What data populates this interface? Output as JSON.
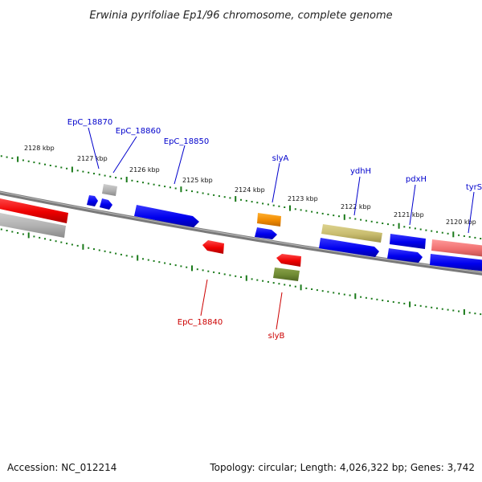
{
  "title": "Erwinia pyrifoliae Ep1/96 chromosome, complete genome",
  "footer": {
    "accession": "Accession: NC_012214",
    "info": "Topology: circular; Length: 4,026,322 bp; Genes: 3,742"
  },
  "colors": {
    "backbone": "#7a7a7a",
    "tick": "#1a7a1a",
    "label_blue": "#0000cc",
    "label_red": "#cc0000"
  },
  "kbp_labels": [
    "2128 kbp",
    "2127 kbp",
    "2126 kbp",
    "2125 kbp",
    "2124 kbp",
    "2123 kbp",
    "2122 kbp",
    "2121 kbp",
    "2120 kbp"
  ],
  "genes_above": [
    {
      "label": "EpC_18870",
      "color": "label_blue"
    },
    {
      "label": "EpC_18860",
      "color": "label_blue"
    },
    {
      "label": "EpC_18850",
      "color": "label_blue"
    },
    {
      "label": "slyA",
      "color": "label_blue"
    },
    {
      "label": "ydhH",
      "color": "label_blue"
    },
    {
      "label": "pdxH",
      "color": "label_blue"
    },
    {
      "label": "tyrS",
      "color": "label_blue"
    }
  ],
  "genes_below": [
    {
      "label": "EpC_18840",
      "color": "label_red"
    },
    {
      "label": "slyB",
      "color": "label_red"
    }
  ]
}
